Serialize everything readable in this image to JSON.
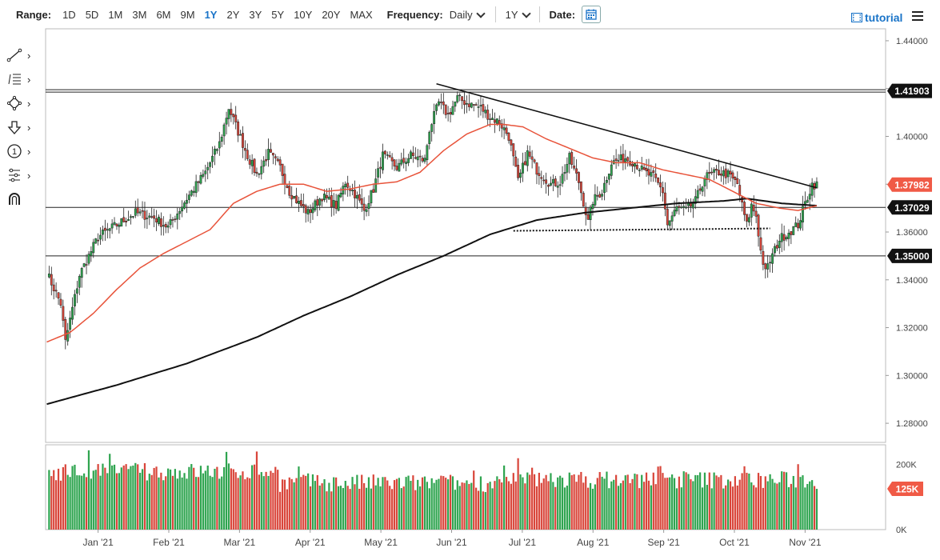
{
  "toolbar": {
    "range_label": "Range:",
    "ranges": [
      "1D",
      "5D",
      "1M",
      "3M",
      "6M",
      "9M",
      "1Y",
      "2Y",
      "3Y",
      "5Y",
      "10Y",
      "20Y",
      "MAX"
    ],
    "active_range": "1Y",
    "frequency_label": "Frequency:",
    "frequency_value": "Daily",
    "period_value": "1Y",
    "date_label": "Date:",
    "tutorial_label": "tutorial"
  },
  "drawing_tools": [
    "line-tool-icon",
    "fib-levels-icon",
    "shape-tool-icon",
    "arrow-tool-icon",
    "number-marker-icon",
    "measure-tool-icon",
    "magnet-icon"
  ],
  "chart_data": {
    "type": "candlestick",
    "x_ticks": [
      "Jan '21",
      "Feb '21",
      "Mar '21",
      "Apr '21",
      "May '21",
      "Jun '21",
      "Jul '21",
      "Aug '21",
      "Sep '21",
      "Oct '21",
      "Nov '21"
    ],
    "price_ticks": [
      "1.44000",
      "1.42000",
      "1.40000",
      "1.38000",
      "1.36000",
      "1.34000",
      "1.32000",
      "1.30000",
      "1.28000"
    ],
    "ylim": [
      1.272,
      1.445
    ],
    "price_checkpoints": [
      [
        0,
        1.343
      ],
      [
        6,
        1.33
      ],
      [
        8,
        1.314
      ],
      [
        14,
        1.342
      ],
      [
        22,
        1.358
      ],
      [
        30,
        1.363
      ],
      [
        38,
        1.368
      ],
      [
        46,
        1.366
      ],
      [
        52,
        1.362
      ],
      [
        60,
        1.374
      ],
      [
        68,
        1.385
      ],
      [
        74,
        1.397
      ],
      [
        78,
        1.412
      ],
      [
        82,
        1.402
      ],
      [
        86,
        1.392
      ],
      [
        90,
        1.384
      ],
      [
        95,
        1.393
      ],
      [
        100,
        1.387
      ],
      [
        104,
        1.377
      ],
      [
        108,
        1.372
      ],
      [
        112,
        1.368
      ],
      [
        118,
        1.375
      ],
      [
        124,
        1.371
      ],
      [
        128,
        1.381
      ],
      [
        132,
        1.376
      ],
      [
        136,
        1.369
      ],
      [
        140,
        1.378
      ],
      [
        144,
        1.392
      ],
      [
        150,
        1.387
      ],
      [
        156,
        1.392
      ],
      [
        162,
        1.39
      ],
      [
        164,
        1.403
      ],
      [
        168,
        1.414
      ],
      [
        172,
        1.409
      ],
      [
        176,
        1.416
      ],
      [
        180,
        1.414
      ],
      [
        186,
        1.412
      ],
      [
        190,
        1.408
      ],
      [
        194,
        1.406
      ],
      [
        198,
        1.4
      ],
      [
        202,
        1.381
      ],
      [
        206,
        1.393
      ],
      [
        210,
        1.386
      ],
      [
        216,
        1.38
      ],
      [
        220,
        1.381
      ],
      [
        224,
        1.391
      ],
      [
        228,
        1.381
      ],
      [
        232,
        1.364
      ],
      [
        234,
        1.373
      ],
      [
        238,
        1.377
      ],
      [
        242,
        1.389
      ],
      [
        248,
        1.391
      ],
      [
        252,
        1.389
      ],
      [
        256,
        1.385
      ],
      [
        260,
        1.383
      ],
      [
        264,
        1.377
      ],
      [
        266,
        1.363
      ],
      [
        270,
        1.37
      ],
      [
        274,
        1.369
      ],
      [
        278,
        1.373
      ],
      [
        282,
        1.383
      ],
      [
        288,
        1.385
      ],
      [
        292,
        1.384
      ],
      [
        296,
        1.38
      ],
      [
        298,
        1.371
      ],
      [
        300,
        1.363
      ],
      [
        302,
        1.371
      ],
      [
        304,
        1.367
      ],
      [
        306,
        1.352
      ],
      [
        308,
        1.343
      ],
      [
        310,
        1.348
      ],
      [
        314,
        1.357
      ],
      [
        318,
        1.36
      ],
      [
        322,
        1.363
      ],
      [
        325,
        1.372
      ],
      [
        328,
        1.38
      ],
      [
        330,
        1.3798
      ]
    ],
    "sma50_checkpoints": [
      [
        0,
        1.314
      ],
      [
        10,
        1.318
      ],
      [
        20,
        1.326
      ],
      [
        30,
        1.336
      ],
      [
        40,
        1.345
      ],
      [
        50,
        1.351
      ],
      [
        60,
        1.356
      ],
      [
        70,
        1.361
      ],
      [
        80,
        1.372
      ],
      [
        90,
        1.377
      ],
      [
        100,
        1.38
      ],
      [
        110,
        1.38
      ],
      [
        120,
        1.377
      ],
      [
        130,
        1.378
      ],
      [
        140,
        1.38
      ],
      [
        150,
        1.381
      ],
      [
        160,
        1.385
      ],
      [
        170,
        1.394
      ],
      [
        180,
        1.401
      ],
      [
        190,
        1.405
      ],
      [
        196,
        1.405
      ],
      [
        204,
        1.404
      ],
      [
        214,
        1.399
      ],
      [
        224,
        1.395
      ],
      [
        234,
        1.391
      ],
      [
        244,
        1.389
      ],
      [
        254,
        1.389
      ],
      [
        264,
        1.386
      ],
      [
        274,
        1.384
      ],
      [
        284,
        1.382
      ],
      [
        294,
        1.377
      ],
      [
        304,
        1.372
      ],
      [
        314,
        1.37
      ],
      [
        322,
        1.369
      ],
      [
        330,
        1.371
      ]
    ],
    "sma200_checkpoints": [
      [
        0,
        1.288
      ],
      [
        30,
        1.296
      ],
      [
        60,
        1.305
      ],
      [
        90,
        1.316
      ],
      [
        110,
        1.325
      ],
      [
        130,
        1.333
      ],
      [
        150,
        1.342
      ],
      [
        170,
        1.35
      ],
      [
        190,
        1.359
      ],
      [
        210,
        1.365
      ],
      [
        230,
        1.368
      ],
      [
        250,
        1.37
      ],
      [
        270,
        1.372
      ],
      [
        290,
        1.373
      ],
      [
        300,
        1.374
      ],
      [
        315,
        1.372
      ],
      [
        330,
        1.371
      ]
    ],
    "volume_ticks": [
      "200K",
      "0K"
    ],
    "volume_current": "125K",
    "trend_line": {
      "from": [
        167,
        1.422
      ],
      "to": [
        330,
        1.3785
      ]
    },
    "support_line": {
      "from": [
        200,
        1.3605
      ],
      "to": [
        310,
        1.3615
      ],
      "style": "dotted"
    },
    "horizontal_levels": [
      {
        "value": 1.41903,
        "label": "1.41903",
        "double": true
      },
      {
        "value": 1.37029,
        "label": "1.37029",
        "double": false
      },
      {
        "value": 1.35,
        "label": "1.35000",
        "double": false
      }
    ],
    "current_price": {
      "value": 1.37982,
      "label": "1.37982",
      "color": "#f05a46"
    },
    "colors": {
      "up": "#2ea44f",
      "down": "#d9453a",
      "sma50": "#e8533a",
      "sma200": "#111111",
      "label_bg": "#111111"
    }
  }
}
